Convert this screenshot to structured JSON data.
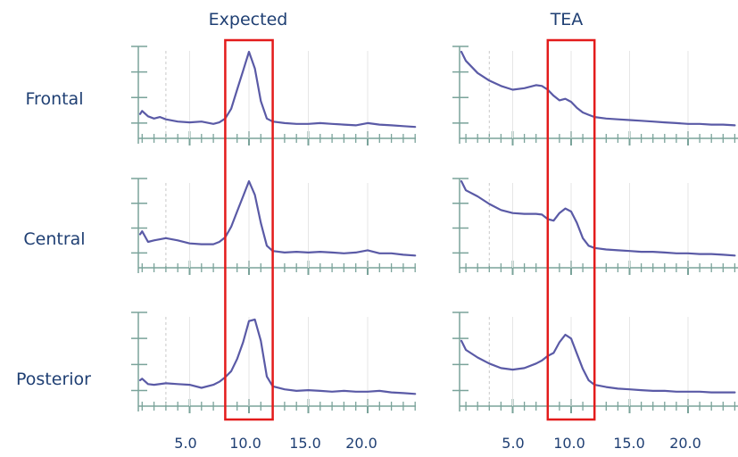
{
  "column_titles": [
    "Expected",
    "TEA"
  ],
  "row_labels": [
    "Frontal",
    "Central",
    "Posterior"
  ],
  "x_tick_labels": [
    "5.0",
    "10.0",
    "15.0",
    "20.0"
  ],
  "colors": {
    "line": "#5a5aa6",
    "axis": "#7aa39a",
    "highlight": "#e31b1b",
    "text": "#1f3f73"
  },
  "chart_data": [
    {
      "type": "line",
      "title": "Expected",
      "row": "Frontal",
      "highlight_x": [
        8,
        12
      ],
      "x": [
        0.5,
        1,
        1.5,
        2,
        2.5,
        3,
        4,
        5,
        6,
        7,
        7.5,
        8,
        8.5,
        9,
        9.5,
        10,
        10.5,
        11,
        11.5,
        12,
        13,
        14,
        15,
        16,
        17,
        18,
        19,
        20,
        21,
        22,
        23,
        24
      ],
      "y": [
        0.18,
        0.22,
        0.15,
        0.12,
        0.14,
        0.11,
        0.08,
        0.07,
        0.08,
        0.05,
        0.07,
        0.12,
        0.25,
        0.5,
        0.75,
        1.0,
        0.78,
        0.35,
        0.12,
        0.08,
        0.06,
        0.05,
        0.05,
        0.06,
        0.05,
        0.04,
        0.03,
        0.06,
        0.04,
        0.03,
        0.02,
        0.01
      ]
    },
    {
      "type": "line",
      "title": "TEA",
      "row": "Frontal",
      "highlight_x": [
        8,
        12
      ],
      "x": [
        0.5,
        1,
        2,
        3,
        4,
        5,
        6,
        7,
        7.5,
        8,
        8.5,
        9,
        9.5,
        10,
        10.5,
        11,
        11.5,
        12,
        13,
        14,
        15,
        16,
        17,
        18,
        19,
        20,
        21,
        22,
        23,
        24
      ],
      "y": [
        1.0,
        0.88,
        0.72,
        0.62,
        0.55,
        0.5,
        0.52,
        0.56,
        0.55,
        0.5,
        0.42,
        0.36,
        0.38,
        0.34,
        0.26,
        0.2,
        0.17,
        0.14,
        0.12,
        0.11,
        0.1,
        0.09,
        0.08,
        0.07,
        0.06,
        0.05,
        0.05,
        0.04,
        0.04,
        0.03
      ]
    },
    {
      "type": "line",
      "title": "Expected",
      "row": "Central",
      "highlight_x": [
        8,
        12
      ],
      "x": [
        0.5,
        1,
        1.5,
        2,
        3,
        4,
        5,
        6,
        7,
        7.5,
        8,
        8.5,
        9,
        9.5,
        10,
        10.5,
        11,
        11.5,
        12,
        13,
        14,
        15,
        16,
        17,
        18,
        19,
        20,
        21,
        22,
        23,
        24
      ],
      "y": [
        0.3,
        0.34,
        0.2,
        0.22,
        0.25,
        0.22,
        0.18,
        0.17,
        0.17,
        0.2,
        0.26,
        0.4,
        0.6,
        0.8,
        1.0,
        0.82,
        0.45,
        0.15,
        0.08,
        0.06,
        0.07,
        0.06,
        0.07,
        0.06,
        0.05,
        0.06,
        0.09,
        0.05,
        0.05,
        0.03,
        0.02
      ]
    },
    {
      "type": "line",
      "title": "TEA",
      "row": "Central",
      "highlight_x": [
        8,
        12
      ],
      "x": [
        0.5,
        1,
        2,
        3,
        4,
        5,
        6,
        7,
        7.5,
        8,
        8.5,
        9,
        9.5,
        10,
        10.5,
        11,
        11.5,
        12,
        13,
        14,
        15,
        16,
        17,
        18,
        19,
        20,
        21,
        22,
        23,
        24
      ],
      "y": [
        1.0,
        0.88,
        0.8,
        0.7,
        0.62,
        0.58,
        0.57,
        0.57,
        0.56,
        0.5,
        0.48,
        0.58,
        0.64,
        0.6,
        0.45,
        0.25,
        0.15,
        0.12,
        0.1,
        0.09,
        0.08,
        0.07,
        0.07,
        0.06,
        0.05,
        0.05,
        0.04,
        0.04,
        0.03,
        0.02
      ]
    },
    {
      "type": "line",
      "title": "Expected",
      "row": "Posterior",
      "highlight_x": [
        8,
        12
      ],
      "x": [
        0.5,
        1,
        1.5,
        2,
        3,
        4,
        5,
        6,
        7,
        7.5,
        8,
        8.5,
        9,
        9.5,
        10,
        10.5,
        11,
        11.5,
        12,
        13,
        14,
        15,
        16,
        17,
        18,
        19,
        20,
        21,
        22,
        23,
        24
      ],
      "y": [
        0.2,
        0.22,
        0.15,
        0.14,
        0.16,
        0.15,
        0.14,
        0.1,
        0.14,
        0.18,
        0.24,
        0.32,
        0.48,
        0.7,
        0.98,
        1.0,
        0.72,
        0.25,
        0.12,
        0.08,
        0.06,
        0.07,
        0.06,
        0.05,
        0.06,
        0.05,
        0.05,
        0.06,
        0.04,
        0.03,
        0.02
      ]
    },
    {
      "type": "line",
      "title": "TEA",
      "row": "Posterior",
      "highlight_x": [
        8,
        12
      ],
      "x": [
        0.5,
        1,
        2,
        3,
        4,
        5,
        6,
        7,
        7.5,
        8,
        8.5,
        9,
        9.5,
        10,
        10.5,
        11,
        11.5,
        12,
        13,
        14,
        15,
        16,
        17,
        18,
        19,
        20,
        21,
        22,
        23,
        24
      ],
      "y": [
        0.72,
        0.6,
        0.5,
        0.42,
        0.36,
        0.34,
        0.36,
        0.42,
        0.46,
        0.52,
        0.56,
        0.7,
        0.8,
        0.75,
        0.55,
        0.35,
        0.2,
        0.14,
        0.11,
        0.09,
        0.08,
        0.07,
        0.06,
        0.06,
        0.05,
        0.05,
        0.05,
        0.04,
        0.04,
        0.04
      ]
    }
  ]
}
